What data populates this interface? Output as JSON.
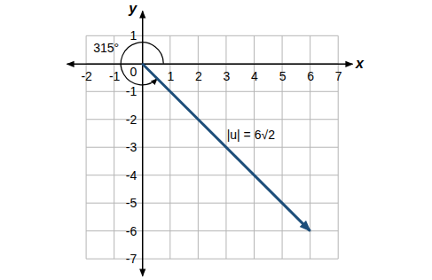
{
  "chart_data": {
    "type": "vector",
    "x_label": "x",
    "y_label": "y",
    "xlim": [
      -2.7,
      7.5
    ],
    "ylim": [
      -7.6,
      1.9
    ],
    "xticks": [
      -2,
      -1,
      1,
      2,
      3,
      4,
      5,
      6,
      7
    ],
    "yticks": [
      -7,
      -6,
      -5,
      -4,
      -3,
      -2,
      -1,
      0,
      1
    ],
    "grid": true,
    "vectors": [
      {
        "start": [
          0,
          0
        ],
        "end": [
          6,
          -6
        ],
        "color": "#1d4e7a",
        "label": "|u| = 6√2"
      }
    ],
    "angle": {
      "value": 315,
      "label": "315°"
    }
  }
}
